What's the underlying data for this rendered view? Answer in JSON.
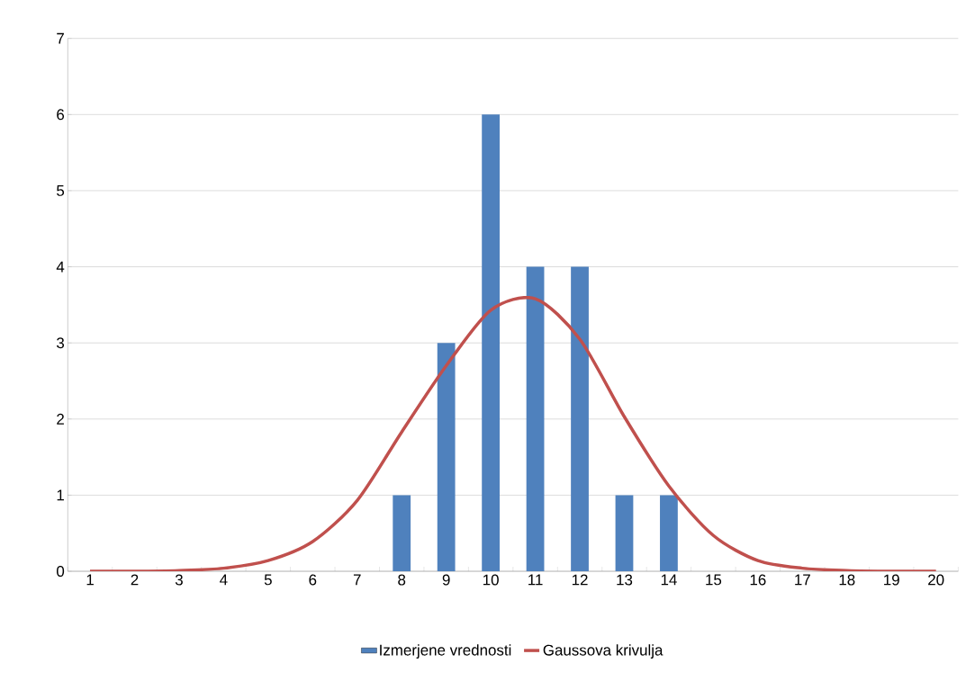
{
  "chart_data": {
    "type": "bar",
    "categories": [
      "1",
      "2",
      "3",
      "4",
      "5",
      "6",
      "7",
      "8",
      "9",
      "10",
      "11",
      "12",
      "13",
      "14",
      "15",
      "16",
      "17",
      "18",
      "19",
      "20"
    ],
    "series": [
      {
        "name": "Izmerjene vrednosti",
        "color": "#4f81bd",
        "values": [
          0,
          0,
          0,
          0,
          0,
          0,
          0,
          1,
          3,
          6,
          4,
          4,
          1,
          1,
          0,
          0,
          0,
          0,
          0,
          0
        ]
      },
      {
        "name": "Gaussova krivulja",
        "type": "line",
        "color": "#c0504d",
        "values": [
          0,
          0,
          0.01,
          0.04,
          0.14,
          0.39,
          0.93,
          1.83,
          2.7,
          3.43,
          3.58,
          3.05,
          2.03,
          1.12,
          0.47,
          0.14,
          0.04,
          0.01,
          0,
          0
        ]
      }
    ],
    "ylim": [
      0,
      7
    ],
    "yticks": [
      0,
      1,
      2,
      3,
      4,
      5,
      6,
      7
    ],
    "grid": "y",
    "legend": "bottom",
    "marker": "none"
  }
}
